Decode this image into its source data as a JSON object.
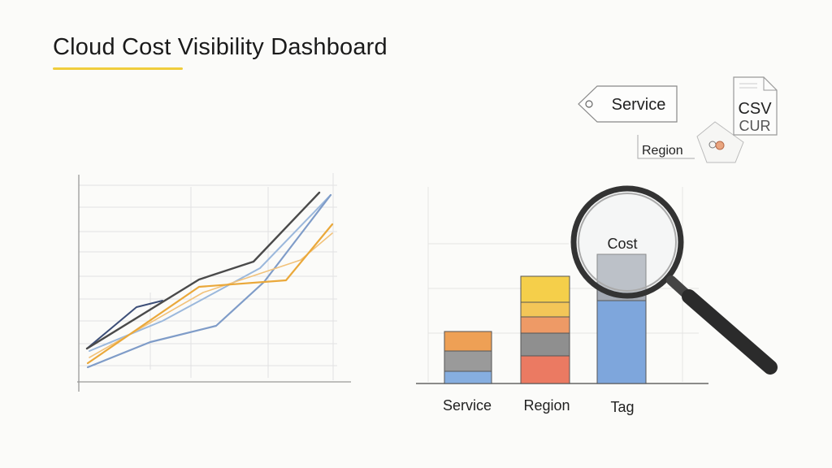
{
  "header": {
    "title": "Cloud Cost Visibility Dashboard"
  },
  "tags": {
    "service": "Service",
    "region": "Region"
  },
  "file": {
    "line1": "CSV",
    "line2": "CUR"
  },
  "bar_chart": {
    "magnified_label": "Cost",
    "categories": [
      "Service",
      "Region",
      "Tag"
    ]
  },
  "colors": {
    "accent": "#f0cd3c",
    "blue": "#6f9bd4",
    "orange": "#eea055",
    "gray": "#8a8a8a",
    "red": "#e8705a",
    "yellow": "#f2c94c"
  }
}
